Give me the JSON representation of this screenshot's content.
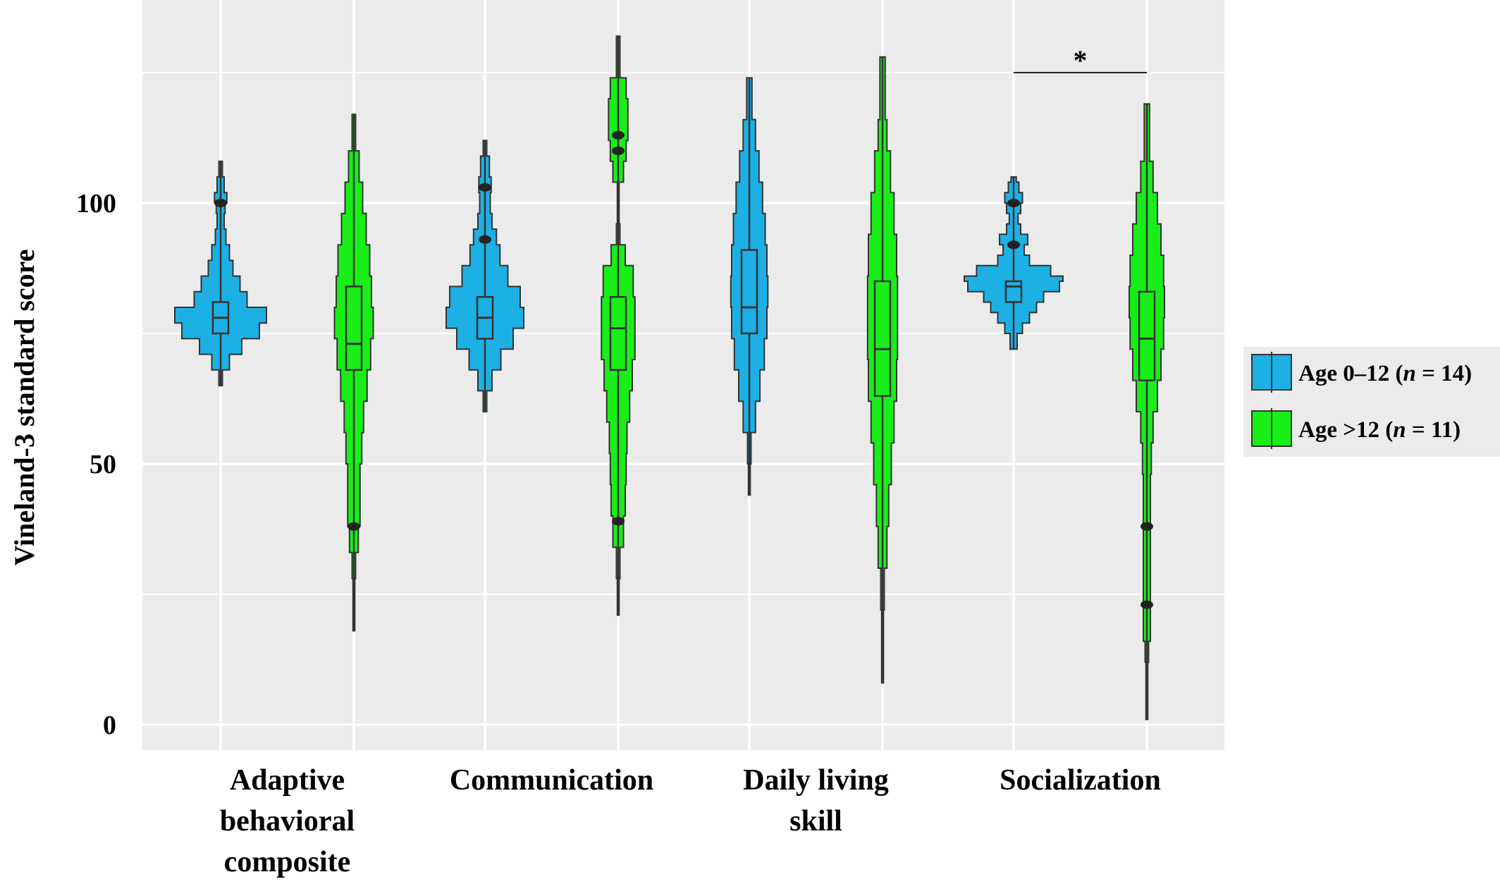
{
  "chart_data": {
    "type": "violin",
    "title": "",
    "xlabel": "",
    "ylabel": "Vineland-3 standard score",
    "ylim": [
      -5,
      138
    ],
    "yticks": [
      0,
      50,
      100
    ],
    "y_minor_gridlines": [
      25,
      75,
      125
    ],
    "grid": true,
    "legend_position": "right",
    "categories": [
      [
        "Adaptive",
        "behavioral",
        "composite"
      ],
      [
        "Communication"
      ],
      [
        "Daily living",
        "skill"
      ],
      [
        "Socialization"
      ]
    ],
    "series": [
      {
        "legend_prefix": "Age 0–12 (",
        "legend_n": "n",
        "legend_suffix": " = 14)",
        "color": "#1cb0e4"
      },
      {
        "legend_prefix": "Age >12 (",
        "legend_n": "n",
        "legend_suffix": " = 11)",
        "color": "#19ee19"
      }
    ],
    "violins": [
      {
        "category": 0,
        "series": 0,
        "box": {
          "q1": 75,
          "median": 78,
          "q3": 81,
          "whisker_low": 72,
          "whisker_high": 90
        },
        "outliers": [
          100
        ],
        "range": [
          65,
          108
        ],
        "density": [
          [
            65,
            2
          ],
          [
            68,
            10
          ],
          [
            71,
            24
          ],
          [
            74,
            44
          ],
          [
            77,
            52
          ],
          [
            80,
            30
          ],
          [
            83,
            22
          ],
          [
            86,
            14
          ],
          [
            89,
            10
          ],
          [
            92,
            6
          ],
          [
            95,
            4
          ],
          [
            98,
            5
          ],
          [
            100,
            7
          ],
          [
            102,
            4
          ],
          [
            105,
            2
          ],
          [
            108,
            1
          ]
        ]
      },
      {
        "category": 0,
        "series": 1,
        "box": {
          "q1": 68,
          "median": 73,
          "q3": 84,
          "whisker_low": 55,
          "whisker_high": 100
        },
        "outliers": [
          38
        ],
        "range": [
          18,
          117
        ],
        "density": [
          [
            18,
            1
          ],
          [
            28,
            2
          ],
          [
            33,
            5
          ],
          [
            38,
            7
          ],
          [
            44,
            7
          ],
          [
            50,
            9
          ],
          [
            56,
            11
          ],
          [
            62,
            15
          ],
          [
            68,
            19
          ],
          [
            74,
            22
          ],
          [
            80,
            20
          ],
          [
            86,
            18
          ],
          [
            92,
            14
          ],
          [
            98,
            10
          ],
          [
            104,
            6
          ],
          [
            110,
            2
          ],
          [
            117,
            1
          ]
        ]
      },
      {
        "category": 1,
        "series": 0,
        "box": {
          "q1": 74,
          "median": 78,
          "q3": 82,
          "whisker_low": 68,
          "whisker_high": 93
        },
        "outliers": [
          103,
          93
        ],
        "range": [
          60,
          112
        ],
        "density": [
          [
            60,
            2
          ],
          [
            64,
            8
          ],
          [
            68,
            18
          ],
          [
            72,
            32
          ],
          [
            76,
            44
          ],
          [
            80,
            40
          ],
          [
            84,
            26
          ],
          [
            88,
            17
          ],
          [
            92,
            13
          ],
          [
            95,
            8
          ],
          [
            98,
            6
          ],
          [
            102,
            7
          ],
          [
            105,
            5
          ],
          [
            109,
            2
          ],
          [
            112,
            1
          ]
        ]
      },
      {
        "category": 1,
        "series": 1,
        "box": {
          "q1": 68,
          "median": 76,
          "q3": 82,
          "whisker_low": 50,
          "whisker_high": 90
        },
        "outliers": [
          39,
          110,
          113
        ],
        "range": [
          21,
          132
        ],
        "density": [
          [
            21,
            1
          ],
          [
            28,
            2
          ],
          [
            34,
            6
          ],
          [
            40,
            8
          ],
          [
            46,
            9
          ],
          [
            52,
            10
          ],
          [
            58,
            13
          ],
          [
            64,
            16
          ],
          [
            70,
            19
          ],
          [
            76,
            19
          ],
          [
            82,
            17
          ],
          [
            88,
            8
          ],
          [
            92,
            2
          ],
          [
            96,
            1
          ],
          [
            100,
            1
          ],
          [
            104,
            6
          ],
          [
            108,
            9
          ],
          [
            112,
            11
          ],
          [
            116,
            11
          ],
          [
            120,
            9
          ],
          [
            124,
            2
          ],
          [
            132,
            1
          ]
        ]
      },
      {
        "category": 2,
        "series": 0,
        "box": {
          "q1": 75,
          "median": 80,
          "q3": 91,
          "whisker_low": 56,
          "whisker_high": 111
        },
        "outliers": [],
        "range": [
          44,
          124
        ],
        "density": [
          [
            44,
            1
          ],
          [
            50,
            2
          ],
          [
            56,
            7
          ],
          [
            62,
            12
          ],
          [
            68,
            17
          ],
          [
            74,
            20
          ],
          [
            80,
            21
          ],
          [
            86,
            20
          ],
          [
            92,
            18
          ],
          [
            98,
            15
          ],
          [
            104,
            11
          ],
          [
            110,
            7
          ],
          [
            116,
            3
          ],
          [
            124,
            1
          ]
        ]
      },
      {
        "category": 2,
        "series": 1,
        "box": {
          "q1": 63,
          "median": 72,
          "q3": 85,
          "whisker_low": 38,
          "whisker_high": 111
        },
        "outliers": [],
        "range": [
          8,
          128
        ],
        "density": [
          [
            8,
            1
          ],
          [
            22,
            2
          ],
          [
            30,
            5
          ],
          [
            38,
            7
          ],
          [
            46,
            10
          ],
          [
            54,
            13
          ],
          [
            62,
            16
          ],
          [
            70,
            17
          ],
          [
            78,
            17
          ],
          [
            86,
            16
          ],
          [
            94,
            13
          ],
          [
            102,
            9
          ],
          [
            110,
            5
          ],
          [
            116,
            3
          ],
          [
            128,
            1
          ]
        ]
      },
      {
        "category": 3,
        "series": 0,
        "box": {
          "q1": 81,
          "median": 84,
          "q3": 85,
          "whisker_low": 77,
          "whisker_high": 92
        },
        "outliers": [
          100,
          92
        ],
        "range": [
          72,
          105
        ],
        "density": [
          [
            72,
            4
          ],
          [
            75,
            10
          ],
          [
            77,
            18
          ],
          [
            79,
            26
          ],
          [
            81,
            34
          ],
          [
            83,
            52
          ],
          [
            85,
            56
          ],
          [
            86,
            42
          ],
          [
            88,
            18
          ],
          [
            90,
            12
          ],
          [
            92,
            16
          ],
          [
            94,
            8
          ],
          [
            96,
            5
          ],
          [
            98,
            8
          ],
          [
            100,
            10
          ],
          [
            102,
            6
          ],
          [
            104,
            3
          ],
          [
            105,
            1
          ]
        ]
      },
      {
        "category": 3,
        "series": 1,
        "box": {
          "q1": 66,
          "median": 74,
          "q3": 83,
          "whisker_low": 50,
          "whisker_high": 97
        },
        "outliers": [
          38,
          23
        ],
        "range": [
          1,
          119
        ],
        "density": [
          [
            1,
            1
          ],
          [
            12,
            2
          ],
          [
            16,
            4
          ],
          [
            24,
            4
          ],
          [
            32,
            4
          ],
          [
            40,
            4
          ],
          [
            48,
            5
          ],
          [
            54,
            7
          ],
          [
            60,
            12
          ],
          [
            66,
            16
          ],
          [
            72,
            19
          ],
          [
            78,
            20
          ],
          [
            84,
            19
          ],
          [
            90,
            16
          ],
          [
            96,
            12
          ],
          [
            102,
            7
          ],
          [
            108,
            3
          ],
          [
            119,
            1
          ]
        ]
      }
    ],
    "annotations": [
      {
        "text": "*",
        "between_series": [
          0,
          1
        ],
        "category": 3,
        "y": 125
      }
    ]
  }
}
